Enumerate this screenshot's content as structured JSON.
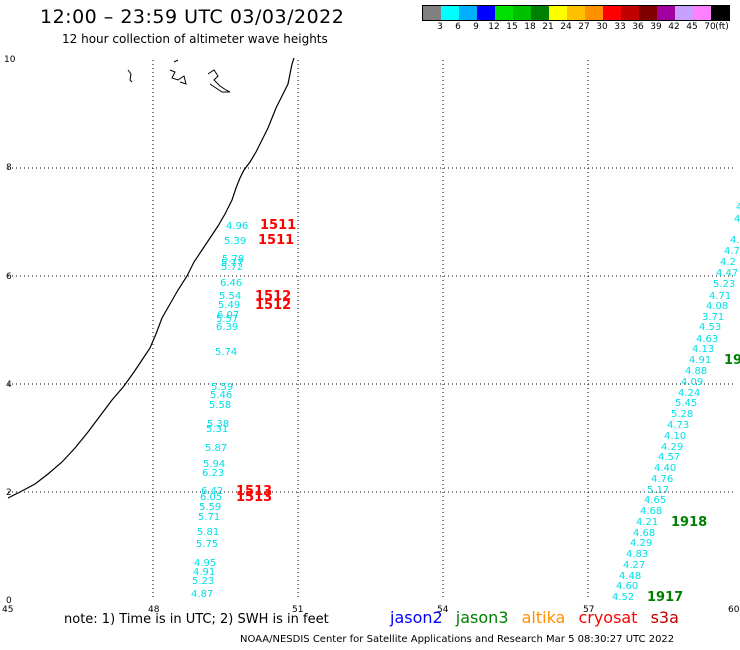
{
  "header": {
    "title": "12:00 – 23:59 UTC 03/03/2022",
    "subtitle": "12 hour collection of altimeter wave heights"
  },
  "legend": {
    "colors": [
      "#808080",
      "#00ffff",
      "#00b0ff",
      "#0000ff",
      "#00e000",
      "#00c000",
      "#008000",
      "#ffff00",
      "#ffc000",
      "#ff9000",
      "#ff0000",
      "#c00000",
      "#800000",
      "#a000a0",
      "#c8a0ff",
      "#ff80ff",
      "#000000"
    ],
    "labels": [
      "3",
      "6",
      "9",
      "12",
      "15",
      "18",
      "21",
      "24",
      "27",
      "30",
      "33",
      "36",
      "39",
      "42",
      "45",
      "70",
      "(ft)"
    ]
  },
  "axes": {
    "x_ticks": [
      "45",
      "48",
      "51",
      "54",
      "57",
      "60"
    ],
    "y_ticks": [
      "10",
      "8",
      "6",
      "4",
      "2",
      "0"
    ]
  },
  "track_west": {
    "color": "#00e0e8",
    "values": [
      "4.96",
      "5.39",
      "5.78",
      "5.77",
      "5.72",
      "6.46",
      "5.54",
      "5.49",
      "6.07",
      "5.57",
      "6.39",
      "5.74",
      "5.59",
      "5.46",
      "5.58",
      "5.38",
      "5.31",
      "5.87",
      "5.94",
      "6.23",
      "6.42",
      "6.05",
      "5.59",
      "5.71",
      "5.81",
      "5.75",
      "4.95",
      "4.91",
      "5.23",
      "4.87"
    ]
  },
  "track_east": {
    "color": "#00e0e8",
    "values": [
      "4.",
      "4.",
      "4.",
      "4.7",
      "4.2",
      "4.47",
      "5.23",
      "4.71",
      "4.08",
      "3.71",
      "4.53",
      "4.63",
      "4.13",
      "4.91",
      "4.88",
      "4.09",
      "4.24",
      "5.45",
      "5.28",
      "4.73",
      "4.10",
      "4.29",
      "4.57",
      "4.40",
      "4.76",
      "5.17",
      "4.65",
      "4.68",
      "4.21",
      "4.68",
      "4.29",
      "4.83",
      "4.27",
      "4.48",
      "4.60",
      "4.52"
    ]
  },
  "times": [
    {
      "label": "1511",
      "color": "#ff0000"
    },
    {
      "label": "1511",
      "color": "#ff0000"
    },
    {
      "label": "1512",
      "color": "#ff0000"
    },
    {
      "label": "1512",
      "color": "#ff0000"
    },
    {
      "label": "1513",
      "color": "#ff0000"
    },
    {
      "label": "1513",
      "color": "#ff0000"
    },
    {
      "label": "19",
      "color": "#008000"
    },
    {
      "label": "1918",
      "color": "#008000"
    },
    {
      "label": "1917",
      "color": "#008000"
    }
  ],
  "footer": {
    "note": "note:  1) Time is in UTC;  2) SWH is in feet",
    "satellites": [
      {
        "name": "jason2",
        "color": "#0000ff"
      },
      {
        "name": "jason3",
        "color": "#008000"
      },
      {
        "name": "altika",
        "color": "#ff9000"
      },
      {
        "name": "cryosat",
        "color": "#ff0000"
      },
      {
        "name": "s3a",
        "color": "#c00000"
      }
    ],
    "credit": "NOAA/NESDIS Center for Satellite Applications and Research     Mar  5 08:30:27 UTC 2022"
  }
}
